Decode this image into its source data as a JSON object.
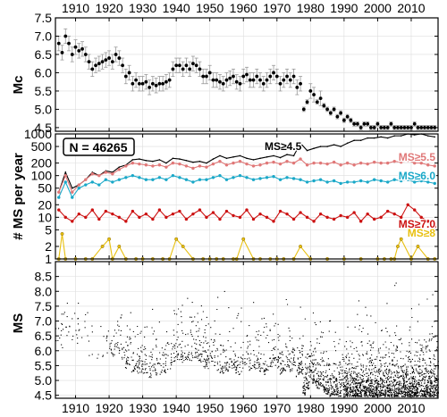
{
  "chart_data": [
    {
      "type": "scatter",
      "panel": "magnitude-of-completeness",
      "ylabel": "Mc",
      "xlim": [
        1904,
        2018
      ],
      "ylim": [
        4.4,
        7.5
      ],
      "x_ticks": [
        1910,
        1920,
        1930,
        1940,
        1950,
        1960,
        1970,
        1980,
        1990,
        2000,
        2010
      ],
      "y_ticks": [
        "4.5",
        "5.0",
        "5.5",
        "6.0",
        "6.5",
        "7.0",
        "7.5"
      ],
      "grid": true,
      "error_bars": true,
      "series": [
        {
          "x": [
            1905,
            1906,
            1907,
            1908,
            1909,
            1910,
            1911,
            1912,
            1913,
            1914,
            1915,
            1916,
            1917,
            1918,
            1919,
            1920,
            1921,
            1922,
            1923,
            1924,
            1925,
            1926,
            1927,
            1928,
            1929,
            1930,
            1931,
            1932,
            1933,
            1934,
            1935,
            1936,
            1937,
            1938,
            1939,
            1940,
            1941,
            1942,
            1943,
            1944,
            1945,
            1946,
            1947,
            1948,
            1949,
            1950,
            1951,
            1952,
            1953,
            1954,
            1955,
            1956,
            1957,
            1958,
            1959,
            1960,
            1961,
            1962,
            1963,
            1964,
            1965,
            1966,
            1967,
            1968,
            1969,
            1970,
            1971,
            1972,
            1973,
            1974,
            1975,
            1976,
            1977,
            1978,
            1979,
            1980,
            1981,
            1982,
            1983,
            1984,
            1985,
            1986,
            1987,
            1988,
            1989,
            1990,
            1991,
            1992,
            1993,
            1994,
            1995,
            1996,
            1997,
            1998,
            1999,
            2000,
            2001,
            2002,
            2003,
            2004,
            2005,
            2006,
            2007,
            2008,
            2009,
            2010,
            2011,
            2012,
            2013,
            2014,
            2015,
            2016,
            2017
          ],
          "y": [
            6.8,
            6.55,
            7.0,
            6.8,
            6.5,
            6.7,
            6.6,
            6.65,
            6.5,
            6.3,
            6.1,
            6.2,
            6.25,
            6.3,
            6.35,
            6.4,
            6.3,
            6.5,
            6.4,
            6.2,
            5.9,
            6.0,
            5.7,
            5.8,
            5.7,
            5.7,
            5.75,
            5.6,
            5.7,
            5.65,
            5.7,
            5.7,
            5.75,
            5.8,
            6.1,
            6.2,
            6.2,
            6.1,
            6.2,
            6.1,
            6.25,
            6.2,
            6.1,
            5.9,
            5.9,
            6.0,
            5.8,
            5.8,
            5.75,
            5.7,
            5.8,
            5.85,
            5.9,
            5.75,
            5.7,
            5.9,
            5.95,
            5.8,
            5.8,
            5.9,
            5.8,
            5.7,
            5.8,
            5.9,
            6.0,
            5.9,
            5.7,
            5.8,
            5.9,
            5.8,
            5.9,
            5.6,
            5.7,
            5.0,
            5.2,
            5.5,
            5.4,
            5.2,
            5.3,
            5.1,
            5.0,
            4.9,
            5.0,
            4.8,
            4.9,
            4.7,
            4.8,
            4.7,
            4.6,
            4.6,
            4.5,
            4.6,
            4.6,
            4.5,
            4.5,
            4.6,
            4.5,
            4.5,
            4.5,
            4.6,
            4.5,
            4.5,
            4.5,
            4.5,
            4.5,
            4.5,
            4.6,
            4.5,
            4.5,
            4.5,
            4.5,
            4.5,
            4.5
          ]
        }
      ]
    },
    {
      "type": "line",
      "panel": "annual-counts",
      "ylabel": "# MS per year",
      "yscale": "log",
      "xlim": [
        1904,
        2018
      ],
      "ylim": [
        1,
        1000
      ],
      "y_ticks": [
        "1",
        "2",
        "5",
        "10",
        "20",
        "50",
        "100",
        "200",
        "500",
        "1000"
      ],
      "grid": true,
      "annotation": "N = 46265",
      "series": [
        {
          "name": "MS≥4.5",
          "color": "#000000",
          "x": [
            1905,
            1907,
            1909,
            1911,
            1913,
            1915,
            1917,
            1919,
            1921,
            1923,
            1925,
            1927,
            1929,
            1931,
            1933,
            1935,
            1937,
            1939,
            1941,
            1943,
            1945,
            1947,
            1949,
            1951,
            1953,
            1955,
            1957,
            1959,
            1961,
            1963,
            1965,
            1967,
            1969,
            1971,
            1973,
            1975,
            1977,
            1979,
            1981,
            1983,
            1985,
            1987,
            1989,
            1991,
            1993,
            1995,
            1997,
            1999,
            2001,
            2003,
            2005,
            2007,
            2009,
            2011,
            2013,
            2015,
            2017
          ],
          "values": [
            40,
            120,
            50,
            60,
            80,
            120,
            100,
            130,
            120,
            160,
            180,
            240,
            250,
            230,
            220,
            240,
            200,
            260,
            250,
            230,
            210,
            220,
            200,
            250,
            300,
            260,
            280,
            300,
            260,
            240,
            260,
            280,
            300,
            270,
            320,
            300,
            600,
            400,
            450,
            500,
            500,
            550,
            500,
            600,
            700,
            700,
            800,
            800,
            850,
            800,
            900,
            900,
            1000,
            950,
            1000,
            900,
            850
          ]
        },
        {
          "name": "MS≥5.5",
          "color": "#e07878",
          "x": [
            1905,
            1907,
            1909,
            1911,
            1913,
            1915,
            1917,
            1919,
            1921,
            1923,
            1925,
            1927,
            1929,
            1931,
            1933,
            1935,
            1937,
            1939,
            1941,
            1943,
            1945,
            1947,
            1949,
            1951,
            1953,
            1955,
            1957,
            1959,
            1961,
            1963,
            1965,
            1967,
            1969,
            1971,
            1973,
            1975,
            1977,
            1979,
            1981,
            1983,
            1985,
            1987,
            1989,
            1991,
            1993,
            1995,
            1997,
            1999,
            2001,
            2003,
            2005,
            2007,
            2009,
            2011,
            2013,
            2015,
            2017
          ],
          "values": [
            40,
            100,
            40,
            60,
            80,
            110,
            100,
            120,
            110,
            140,
            170,
            200,
            190,
            180,
            170,
            180,
            160,
            200,
            190,
            170,
            150,
            170,
            160,
            190,
            220,
            180,
            200,
            220,
            190,
            170,
            180,
            200,
            210,
            190,
            220,
            200,
            250,
            180,
            200,
            200,
            190,
            210,
            180,
            200,
            180,
            200,
            190,
            210,
            200,
            200,
            220,
            210,
            230,
            200,
            200,
            180,
            170
          ]
        },
        {
          "name": "MS≥6.0",
          "color": "#1aa8c8",
          "x": [
            1905,
            1907,
            1909,
            1911,
            1913,
            1915,
            1917,
            1919,
            1921,
            1923,
            1925,
            1927,
            1929,
            1931,
            1933,
            1935,
            1937,
            1939,
            1941,
            1943,
            1945,
            1947,
            1949,
            1951,
            1953,
            1955,
            1957,
            1959,
            1961,
            1963,
            1965,
            1967,
            1969,
            1971,
            1973,
            1975,
            1977,
            1979,
            1981,
            1983,
            1985,
            1987,
            1989,
            1991,
            1993,
            1995,
            1997,
            1999,
            2001,
            2003,
            2005,
            2007,
            2009,
            2011,
            2013,
            2015,
            2017
          ],
          "values": [
            30,
            70,
            30,
            50,
            60,
            70,
            60,
            80,
            70,
            80,
            90,
            100,
            90,
            80,
            80,
            90,
            80,
            100,
            90,
            80,
            70,
            80,
            80,
            90,
            100,
            80,
            90,
            100,
            90,
            80,
            85,
            90,
            95,
            80,
            90,
            85,
            80,
            70,
            75,
            80,
            70,
            75,
            65,
            70,
            70,
            75,
            70,
            80,
            75,
            70,
            80,
            75,
            80,
            70,
            75,
            70,
            65
          ]
        },
        {
          "name": "MS≥7.0",
          "color": "#cc1111",
          "x": [
            1905,
            1907,
            1909,
            1911,
            1913,
            1915,
            1917,
            1919,
            1921,
            1923,
            1925,
            1927,
            1929,
            1931,
            1933,
            1935,
            1937,
            1939,
            1941,
            1943,
            1945,
            1947,
            1949,
            1951,
            1953,
            1955,
            1957,
            1959,
            1961,
            1963,
            1965,
            1967,
            1969,
            1971,
            1973,
            1975,
            1977,
            1979,
            1981,
            1983,
            1985,
            1987,
            1989,
            1991,
            1993,
            1995,
            1997,
            1999,
            2001,
            2003,
            2005,
            2007,
            2009,
            2011,
            2013,
            2015,
            2017
          ],
          "values": [
            15,
            10,
            8,
            12,
            10,
            15,
            9,
            14,
            12,
            10,
            8,
            14,
            10,
            12,
            9,
            15,
            10,
            12,
            14,
            9,
            12,
            15,
            10,
            13,
            9,
            14,
            11,
            10,
            15,
            9,
            12,
            10,
            8,
            14,
            12,
            9,
            13,
            10,
            8,
            12,
            10,
            9,
            11,
            10,
            13,
            8,
            12,
            9,
            10,
            14,
            12,
            10,
            20,
            15,
            10,
            8,
            6
          ]
        },
        {
          "name": "MS≥8",
          "color": "#e8c010",
          "x": [
            1905,
            1906,
            1907,
            1910,
            1913,
            1915,
            1918,
            1920,
            1921,
            1923,
            1925,
            1928,
            1930,
            1933,
            1936,
            1938,
            1940,
            1942,
            1945,
            1948,
            1950,
            1952,
            1954,
            1957,
            1958,
            1960,
            1963,
            1965,
            1968,
            1970,
            1972,
            1975,
            1977,
            1980,
            1985,
            1990,
            1995,
            2000,
            2002,
            2004,
            2005,
            2006,
            2007,
            2010,
            2012,
            2015,
            2017
          ],
          "values": [
            1,
            4,
            1,
            1,
            1,
            1,
            2,
            3,
            1,
            2,
            1,
            1,
            1,
            1,
            1,
            1,
            3,
            2,
            1,
            1,
            1,
            1,
            1,
            1,
            1,
            3,
            1,
            1,
            1,
            1,
            1,
            1,
            2,
            1,
            1,
            1,
            1,
            1,
            1,
            1,
            1,
            2,
            3,
            1,
            2,
            1,
            1
          ]
        }
      ]
    },
    {
      "type": "scatter",
      "panel": "magnitudes",
      "ylabel": "MS",
      "xlim": [
        1904,
        2018
      ],
      "ylim": [
        4.4,
        9.0
      ],
      "y_ticks": [
        "4.5",
        "5.0",
        "5.5",
        "6.0",
        "6.5",
        "7.0",
        "7.5",
        "8.0",
        "8.5"
      ],
      "x_ticks": [
        1910,
        1920,
        1930,
        1940,
        1950,
        1960,
        1970,
        1980,
        1990,
        2000,
        2010
      ],
      "grid": true,
      "point_count": 46265
    }
  ]
}
